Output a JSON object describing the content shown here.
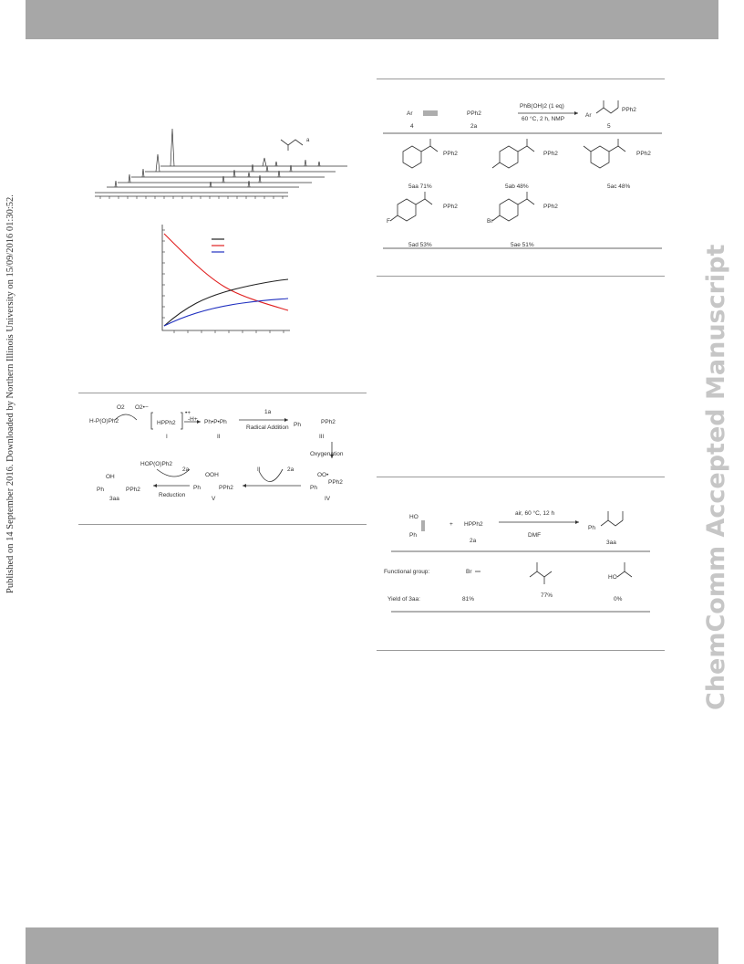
{
  "sidebar_note": "Published on 14 September 2016. Downloaded by Northern Illinois University on 15/09/2016 01:30:52.",
  "watermark": "ChemComm Accepted Manuscript",
  "mechanism": {
    "reagent": "H-P(O)Ph2",
    "o2": "O2",
    "superoxide": "O2•−",
    "radical_cation": "HPPh2",
    "cation_charge": "•+",
    "minus_h": "-H+",
    "label_I": "I",
    "radical_II": "Ph•P•Ph",
    "label_II": "II",
    "step_1a": "1a",
    "radical_addition": "Radical Addition",
    "label_III": "III",
    "oxygenation": "Oxygenation",
    "label_IV": "IV",
    "label_V": "V",
    "label_2a_left": "2a",
    "label_2a_right": "2a",
    "label_II_cycle": "II",
    "reduction": "Reduction",
    "hoppph2": "HOP(O)Ph2",
    "product": "3aa",
    "ph": "Ph",
    "ooh": "OOH",
    "oo": "OO•",
    "oh": "OH",
    "pph2": "PPh2"
  },
  "scheme_alkynes": {
    "reactant_label_4": "4",
    "reactant_label_2a": "2a",
    "ar": "Ar",
    "conditions_top": "PhB(OH)2 (1 eq)",
    "conditions_bottom": "60 °C, 2 h, NMP",
    "product_label": "5",
    "pph2": "PPh2",
    "pph2_label": "P(O)Ph2",
    "products": [
      {
        "label": "5aa 71%"
      },
      {
        "label": "5ab 48%"
      },
      {
        "label": "5ac 48%"
      },
      {
        "label": "5ad 53%"
      },
      {
        "label": "5ae 51%"
      }
    ],
    "f": "F",
    "br": "Br"
  },
  "scheme_alkenes": {
    "reactant_1": "HO",
    "reactant_1b": "Ph",
    "plus": "+",
    "reagent": "HPPh2",
    "reagent_label": "2a",
    "conditions_top": "air, 60 °C, 12 h",
    "conditions_bottom": "DMF",
    "product_label": "3aa",
    "product_ph": "Ph",
    "row_functional_group": "Functional group:",
    "row_yield": "Yield of 3aa:",
    "groups": [
      "Br",
      "",
      "HO"
    ],
    "yields": [
      "81%",
      "77%",
      "0%"
    ]
  }
}
